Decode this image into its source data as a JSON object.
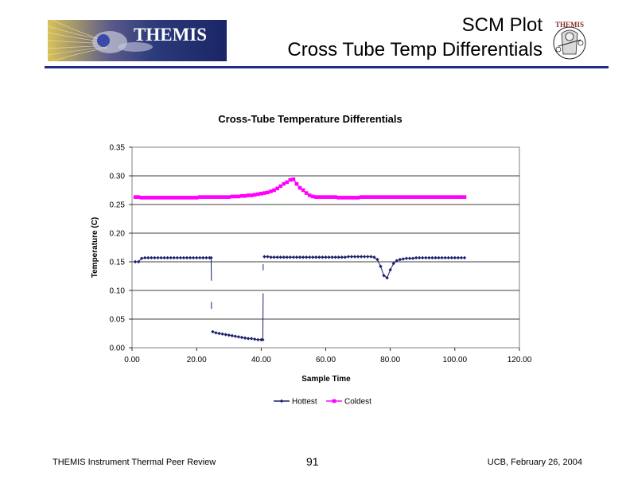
{
  "header": {
    "logo_text": "THEMIS",
    "title_line1": "SCM Plot",
    "title_line2": "Cross Tube Temp Differentials",
    "mascot_text": "THEMIS"
  },
  "footer": {
    "left": "THEMIS Instrument Thermal Peer Review",
    "center": "91",
    "right": "UCB, February 26, 2004"
  },
  "colors": {
    "rule": "#1e2a8c",
    "hottest": "#1b1f6e",
    "coldest": "#ff00ff"
  },
  "chart_data": {
    "type": "line",
    "title": "Cross-Tube Temperature Differentials",
    "xlabel": "Sample Time",
    "ylabel": "Temperature (C)",
    "xlim": [
      0,
      120
    ],
    "ylim": [
      0,
      0.35
    ],
    "xticks": [
      "0.00",
      "20.00",
      "40.00",
      "60.00",
      "80.00",
      "100.00",
      "120.00"
    ],
    "yticks": [
      "0.00",
      "0.05",
      "0.10",
      "0.15",
      "0.20",
      "0.25",
      "0.30",
      "0.35"
    ],
    "grid": "horizontal",
    "legend_position": "bottom",
    "series": [
      {
        "name": "Hottest",
        "color": "#1b1f6e",
        "marker": "diamond",
        "segments": [
          [
            [
              1,
              0.15
            ],
            [
              2,
              0.15
            ],
            [
              3,
              0.156
            ],
            [
              4,
              0.157
            ],
            [
              5,
              0.157
            ],
            [
              6,
              0.157
            ],
            [
              7,
              0.157
            ],
            [
              8,
              0.157
            ],
            [
              9,
              0.157
            ],
            [
              10,
              0.157
            ],
            [
              11,
              0.157
            ],
            [
              12,
              0.157
            ],
            [
              13,
              0.157
            ],
            [
              14,
              0.157
            ],
            [
              15,
              0.157
            ],
            [
              16,
              0.157
            ],
            [
              17,
              0.157
            ],
            [
              18,
              0.157
            ],
            [
              19,
              0.157
            ],
            [
              20,
              0.157
            ],
            [
              21,
              0.157
            ],
            [
              22,
              0.157
            ],
            [
              23,
              0.157
            ],
            [
              24,
              0.157
            ],
            [
              24.5,
              0.157
            ],
            [
              24.6,
              0.117
            ]
          ],
          [
            [
              24.6,
              0.08
            ],
            [
              24.6,
              0.068
            ]
          ],
          [
            [
              24.6,
              0.028
            ],
            [
              25,
              0.028
            ],
            [
              26,
              0.026
            ],
            [
              27,
              0.025
            ],
            [
              28,
              0.024
            ],
            [
              29,
              0.023
            ],
            [
              30,
              0.022
            ],
            [
              31,
              0.021
            ],
            [
              32,
              0.02
            ],
            [
              33,
              0.019
            ],
            [
              34,
              0.018
            ],
            [
              35,
              0.017
            ],
            [
              36,
              0.016
            ],
            [
              37,
              0.016
            ],
            [
              38,
              0.015
            ],
            [
              39,
              0.014
            ],
            [
              40,
              0.014
            ],
            [
              40.5,
              0.014
            ],
            [
              40.6,
              0.095
            ]
          ],
          [
            [
              40.6,
              0.135
            ],
            [
              40.6,
              0.146
            ]
          ],
          [
            [
              41,
              0.159
            ],
            [
              42,
              0.159
            ],
            [
              43,
              0.158
            ],
            [
              44,
              0.158
            ],
            [
              45,
              0.158
            ],
            [
              46,
              0.158
            ],
            [
              47,
              0.158
            ],
            [
              48,
              0.158
            ],
            [
              49,
              0.158
            ],
            [
              50,
              0.158
            ],
            [
              51,
              0.158
            ],
            [
              52,
              0.158
            ],
            [
              53,
              0.158
            ],
            [
              54,
              0.158
            ],
            [
              55,
              0.158
            ],
            [
              56,
              0.158
            ],
            [
              57,
              0.158
            ],
            [
              58,
              0.158
            ],
            [
              59,
              0.158
            ],
            [
              60,
              0.158
            ],
            [
              61,
              0.158
            ],
            [
              62,
              0.158
            ],
            [
              63,
              0.158
            ],
            [
              64,
              0.158
            ],
            [
              65,
              0.158
            ],
            [
              66,
              0.158
            ],
            [
              67,
              0.159
            ],
            [
              68,
              0.159
            ],
            [
              69,
              0.159
            ],
            [
              70,
              0.159
            ],
            [
              71,
              0.159
            ],
            [
              72,
              0.159
            ],
            [
              73,
              0.159
            ],
            [
              74,
              0.159
            ],
            [
              75,
              0.158
            ],
            [
              76,
              0.154
            ],
            [
              77,
              0.142
            ],
            [
              78,
              0.126
            ],
            [
              79,
              0.122
            ],
            [
              80,
              0.136
            ],
            [
              81,
              0.147
            ],
            [
              82,
              0.152
            ],
            [
              83,
              0.154
            ],
            [
              84,
              0.155
            ],
            [
              85,
              0.156
            ],
            [
              86,
              0.156
            ],
            [
              87,
              0.156
            ],
            [
              88,
              0.157
            ],
            [
              89,
              0.157
            ],
            [
              90,
              0.157
            ],
            [
              91,
              0.157
            ],
            [
              92,
              0.157
            ],
            [
              93,
              0.157
            ],
            [
              94,
              0.157
            ],
            [
              95,
              0.157
            ],
            [
              96,
              0.157
            ],
            [
              97,
              0.157
            ],
            [
              98,
              0.157
            ],
            [
              99,
              0.157
            ],
            [
              100,
              0.157
            ],
            [
              101,
              0.157
            ],
            [
              102,
              0.157
            ],
            [
              103,
              0.157
            ]
          ]
        ]
      },
      {
        "name": "Coldest",
        "color": "#ff00ff",
        "marker": "square",
        "segments": [
          [
            [
              1,
              0.263
            ],
            [
              2,
              0.263
            ],
            [
              3,
              0.262
            ],
            [
              4,
              0.262
            ],
            [
              5,
              0.262
            ],
            [
              6,
              0.262
            ],
            [
              7,
              0.262
            ],
            [
              8,
              0.262
            ],
            [
              9,
              0.262
            ],
            [
              10,
              0.262
            ],
            [
              11,
              0.262
            ],
            [
              12,
              0.262
            ],
            [
              13,
              0.262
            ],
            [
              14,
              0.262
            ],
            [
              15,
              0.262
            ],
            [
              16,
              0.262
            ],
            [
              17,
              0.262
            ],
            [
              18,
              0.262
            ],
            [
              19,
              0.262
            ],
            [
              20,
              0.262
            ],
            [
              21,
              0.263
            ],
            [
              22,
              0.263
            ],
            [
              23,
              0.263
            ],
            [
              24,
              0.263
            ],
            [
              25,
              0.263
            ],
            [
              26,
              0.263
            ],
            [
              27,
              0.263
            ],
            [
              28,
              0.263
            ],
            [
              29,
              0.263
            ],
            [
              30,
              0.263
            ],
            [
              31,
              0.264
            ],
            [
              32,
              0.264
            ],
            [
              33,
              0.264
            ],
            [
              34,
              0.265
            ],
            [
              35,
              0.265
            ],
            [
              36,
              0.266
            ],
            [
              37,
              0.266
            ],
            [
              38,
              0.267
            ],
            [
              39,
              0.268
            ],
            [
              40,
              0.269
            ],
            [
              41,
              0.27
            ],
            [
              42,
              0.271
            ],
            [
              43,
              0.273
            ],
            [
              44,
              0.275
            ],
            [
              45,
              0.278
            ],
            [
              46,
              0.282
            ],
            [
              47,
              0.286
            ],
            [
              48,
              0.289
            ],
            [
              49,
              0.293
            ],
            [
              50,
              0.294
            ],
            [
              51,
              0.286
            ],
            [
              52,
              0.279
            ],
            [
              53,
              0.275
            ],
            [
              54,
              0.27
            ],
            [
              55,
              0.266
            ],
            [
              56,
              0.264
            ],
            [
              57,
              0.263
            ],
            [
              58,
              0.263
            ],
            [
              59,
              0.263
            ],
            [
              60,
              0.263
            ],
            [
              61,
              0.263
            ],
            [
              62,
              0.263
            ],
            [
              63,
              0.263
            ],
            [
              64,
              0.262
            ],
            [
              65,
              0.262
            ],
            [
              66,
              0.262
            ],
            [
              67,
              0.262
            ],
            [
              68,
              0.262
            ],
            [
              69,
              0.262
            ],
            [
              70,
              0.262
            ],
            [
              71,
              0.263
            ],
            [
              72,
              0.263
            ],
            [
              73,
              0.263
            ],
            [
              74,
              0.263
            ],
            [
              75,
              0.263
            ],
            [
              76,
              0.263
            ],
            [
              77,
              0.263
            ],
            [
              78,
              0.263
            ],
            [
              79,
              0.263
            ],
            [
              80,
              0.263
            ],
            [
              81,
              0.263
            ],
            [
              82,
              0.263
            ],
            [
              83,
              0.263
            ],
            [
              84,
              0.263
            ],
            [
              85,
              0.263
            ],
            [
              86,
              0.263
            ],
            [
              87,
              0.263
            ],
            [
              88,
              0.263
            ],
            [
              89,
              0.263
            ],
            [
              90,
              0.263
            ],
            [
              91,
              0.263
            ],
            [
              92,
              0.263
            ],
            [
              93,
              0.263
            ],
            [
              94,
              0.263
            ],
            [
              95,
              0.263
            ],
            [
              96,
              0.263
            ],
            [
              97,
              0.263
            ],
            [
              98,
              0.263
            ],
            [
              99,
              0.263
            ],
            [
              100,
              0.263
            ],
            [
              101,
              0.263
            ],
            [
              102,
              0.263
            ],
            [
              103,
              0.263
            ]
          ]
        ]
      }
    ]
  }
}
